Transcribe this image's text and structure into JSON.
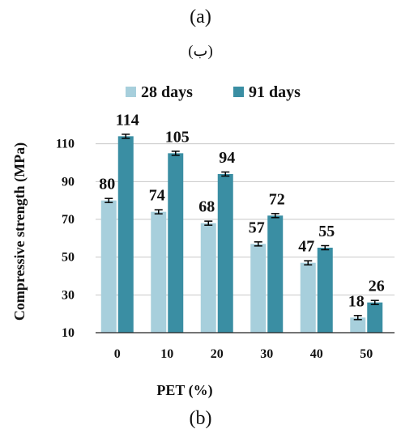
{
  "captions": {
    "top": "(a)",
    "arabic": "(ب)",
    "bottom": "(b)"
  },
  "colors": {
    "series_28": "#a7cfdc",
    "series_91": "#3a8ea3",
    "gridline": "#c8c8c8",
    "axis": "#222222",
    "error_bar": "#000000"
  },
  "chart_data": {
    "type": "bar",
    "title": "",
    "xlabel": "PET (%)",
    "ylabel": "Compressive strength (MPa)",
    "categories": [
      "0",
      "10",
      "20",
      "30",
      "40",
      "50"
    ],
    "series": [
      {
        "name": "28 days",
        "values": [
          80,
          74,
          68,
          57,
          47,
          18
        ]
      },
      {
        "name": "91 days",
        "values": [
          114,
          105,
          94,
          72,
          55,
          26
        ]
      }
    ],
    "data_labels": {
      "28 days": [
        "80",
        "74",
        "68",
        "57",
        "47",
        "18"
      ],
      "91 days": [
        "114",
        "105",
        "94",
        "72",
        "55",
        "26"
      ]
    },
    "yticks": [
      10,
      30,
      50,
      70,
      90,
      110
    ],
    "ylim": [
      10,
      124
    ],
    "grid": true,
    "legend_position": "top",
    "error_bars": true
  }
}
